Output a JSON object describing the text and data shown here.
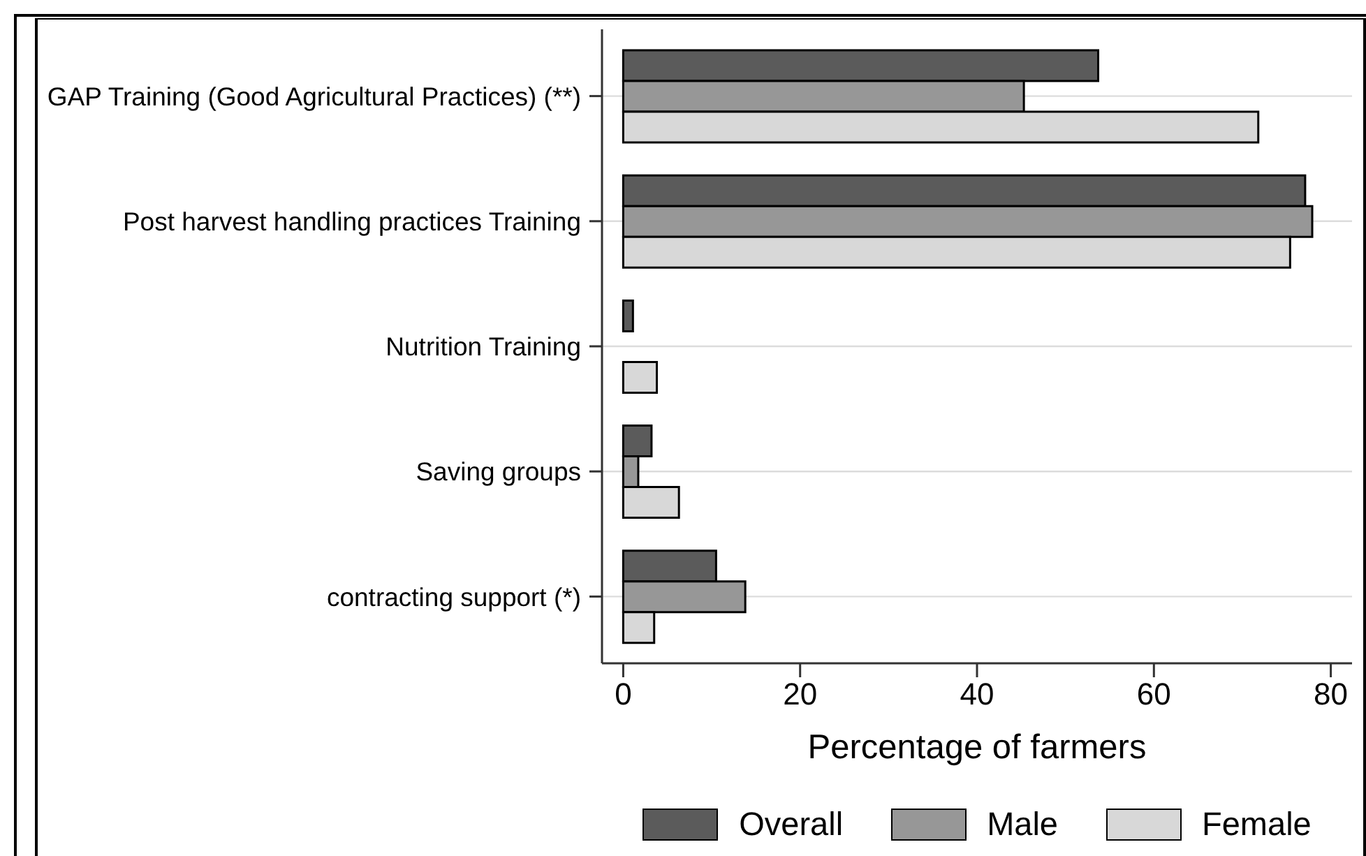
{
  "chart_data": {
    "type": "bar",
    "orientation": "horizontal",
    "xlabel": "Percentage of farmers",
    "categories": [
      "GAP Training (Good Agricultural Practices) (**)",
      "Post harvest handling practices Training",
      "Nutrition Training",
      "Saving groups",
      "contracting support (*)"
    ],
    "series": [
      {
        "name": "Overall",
        "color": "#5b5b5b",
        "values": [
          53.7,
          77.1,
          1.1,
          3.2,
          10.5
        ]
      },
      {
        "name": "Male",
        "color": "#979797",
        "values": [
          45.3,
          77.9,
          null,
          1.7,
          13.8
        ]
      },
      {
        "name": "Female",
        "color": "#d8d8d8",
        "values": [
          71.8,
          75.4,
          3.8,
          6.3,
          3.5
        ]
      }
    ],
    "xlim": [
      -2.4,
      82.4
    ],
    "xticks": [
      0,
      20,
      40,
      60,
      80
    ],
    "grid": "y",
    "legend": "bottom"
  }
}
